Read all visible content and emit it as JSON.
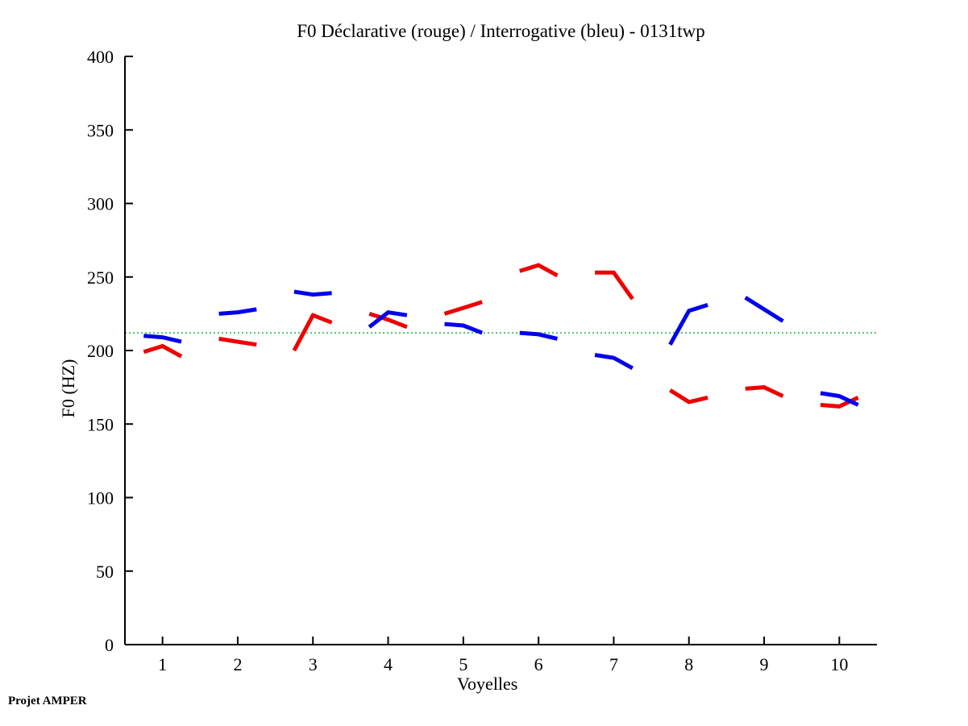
{
  "footer": {
    "label": "Projet AMPER"
  },
  "colors": {
    "declarative": "#ee0000",
    "interrogative": "#0000ee",
    "reference_line": "#44c767",
    "axis": "#000000",
    "background": "#ffffff"
  },
  "chart_data": {
    "type": "line",
    "title": "F0 Déclarative (rouge) / Interrogative (bleu) - 0131twp",
    "xlabel": "Voyelles",
    "ylabel": "F0 (HZ)",
    "xlim": [
      0.5,
      10.5
    ],
    "ylim": [
      0,
      400
    ],
    "x_ticks": [
      1,
      2,
      3,
      4,
      5,
      6,
      7,
      8,
      9,
      10
    ],
    "y_ticks": [
      0,
      50,
      100,
      150,
      200,
      250,
      300,
      350,
      400
    ],
    "grid": false,
    "legend_position": "none (series identified in title)",
    "reference_line": {
      "value": 212,
      "style": "dotted",
      "color": "#44c767"
    },
    "point_offsets": [
      -0.25,
      0,
      0.25
    ],
    "series": [
      {
        "name": "Déclarative",
        "color": "#ee0000",
        "style": "solid",
        "linewidth": 5,
        "segments": [
          {
            "vowel": 1,
            "f0": [
              199,
              203,
              196
            ]
          },
          {
            "vowel": 2,
            "f0": [
              208,
              206,
              204
            ]
          },
          {
            "vowel": 3,
            "f0": [
              200,
              224,
              219
            ]
          },
          {
            "vowel": 4,
            "f0": [
              225,
              221,
              216
            ]
          },
          {
            "vowel": 5,
            "f0": [
              225,
              229,
              233
            ]
          },
          {
            "vowel": 6,
            "f0": [
              254,
              258,
              251
            ]
          },
          {
            "vowel": 7,
            "f0": [
              253,
              253,
              235
            ]
          },
          {
            "vowel": 8,
            "f0": [
              173,
              165,
              168
            ]
          },
          {
            "vowel": 9,
            "f0": [
              174,
              175,
              169
            ]
          },
          {
            "vowel": 10,
            "f0": [
              163,
              162,
              168
            ]
          }
        ]
      },
      {
        "name": "Interrogative",
        "color": "#0000ee",
        "style": "solid",
        "linewidth": 5,
        "segments": [
          {
            "vowel": 1,
            "f0": [
              210,
              209,
              206
            ]
          },
          {
            "vowel": 2,
            "f0": [
              225,
              226,
              228
            ]
          },
          {
            "vowel": 3,
            "f0": [
              240,
              238,
              239
            ]
          },
          {
            "vowel": 4,
            "f0": [
              216,
              226,
              224
            ]
          },
          {
            "vowel": 5,
            "f0": [
              218,
              217,
              212
            ]
          },
          {
            "vowel": 6,
            "f0": [
              212,
              211,
              208
            ]
          },
          {
            "vowel": 7,
            "f0": [
              197,
              195,
              188
            ]
          },
          {
            "vowel": 8,
            "f0": [
              204,
              227,
              231
            ]
          },
          {
            "vowel": 9,
            "f0": [
              236,
              228,
              220
            ]
          },
          {
            "vowel": 10,
            "f0": [
              171,
              169,
              163
            ]
          }
        ]
      }
    ]
  }
}
